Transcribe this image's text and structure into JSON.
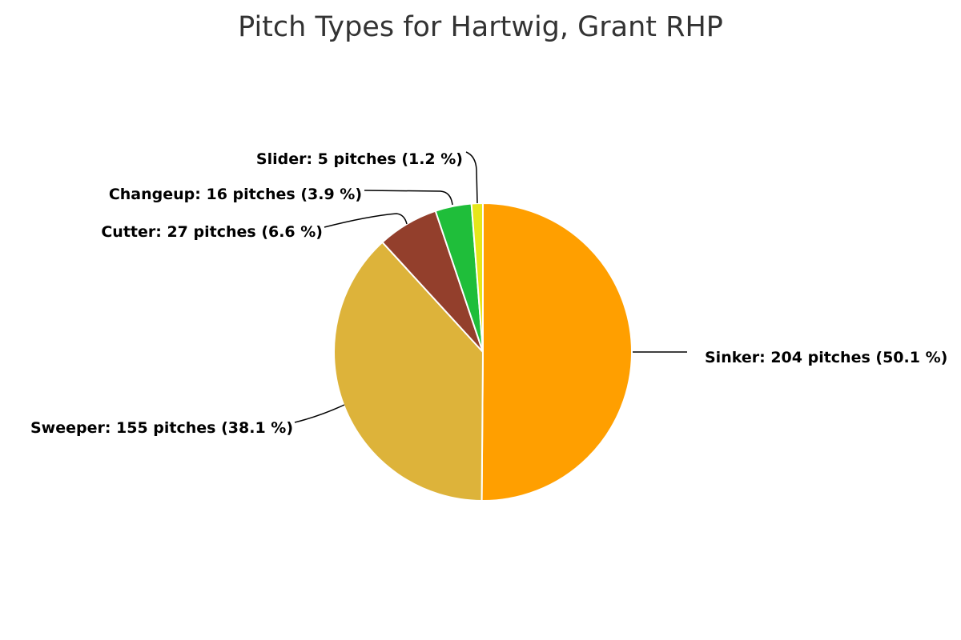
{
  "chart_data": {
    "type": "pie",
    "title": "Pitch Types for Hartwig, Grant RHP",
    "start_angle": "12 o'clock, clockwise",
    "slices": [
      {
        "name": "Sinker",
        "value": 204,
        "percent": 50.1,
        "label": "Sinker: 204 pitches (50.1 %)",
        "color": "#FF9F00"
      },
      {
        "name": "Sweeper",
        "value": 155,
        "percent": 38.1,
        "label": "Sweeper: 155 pitches (38.1 %)",
        "color": "#DDB33A"
      },
      {
        "name": "Cutter",
        "value": 27,
        "percent": 6.6,
        "label": "Cutter: 27 pitches (6.6 %)",
        "color": "#933F2C"
      },
      {
        "name": "Changeup",
        "value": 16,
        "percent": 3.9,
        "label": "Changeup: 16 pitches (3.9 %)",
        "color": "#1FBE3A"
      },
      {
        "name": "Slider",
        "value": 5,
        "percent": 1.2,
        "label": "Slider: 5 pitches (1.2 %)",
        "color": "#E6E61A"
      }
    ]
  }
}
